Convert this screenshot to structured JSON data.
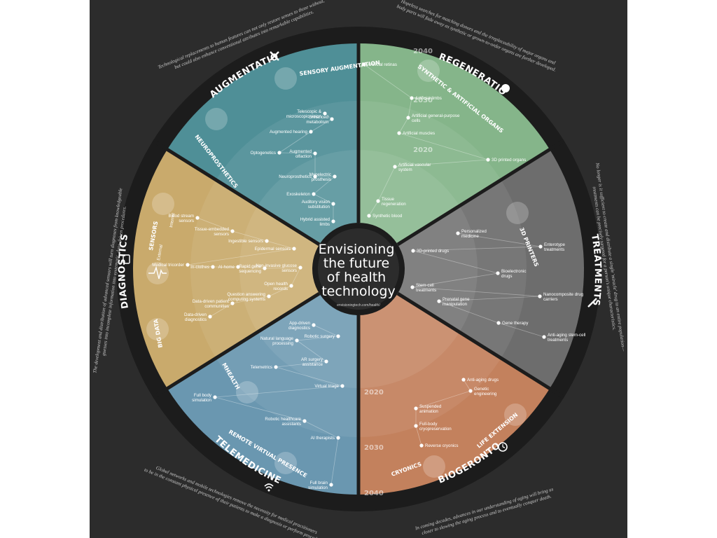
{
  "center": {
    "title_lines": [
      "Envisioning",
      "the future",
      "of health",
      "technology"
    ],
    "url": "envisioningtech.com/health/"
  },
  "years": {
    "y2020": "2020",
    "y2030": "2030",
    "y2040": "2040"
  },
  "colors": {
    "augmentation": "#4f8f97",
    "regeneration": "#85b58a",
    "treatments": "#6d6d6d",
    "biogerontology": "#c3815d",
    "telemedicine": "#6a97b0",
    "diagnostics": "#c9aa6c",
    "background": "#2c2c2c",
    "outer_ring": "#1c1c1c"
  },
  "sections": {
    "augmentation": {
      "title": "AUGMENTATION",
      "subcategories": [
        "SENSORY AUGMENTATION",
        "NEUROPROSTHETICS"
      ],
      "description": [
        "Technological replacements to human features can not only restore senses to those without,",
        "but could also enhance conventional attributes into remarkable capabilities."
      ],
      "items": [
        "Telescopic & microscopic vision",
        "Enhanced metabolism",
        "Augmented hearing",
        "Optogenetics",
        "Augmented olfaction",
        "Neuroprosthetics",
        "Myoelectric prosthesis",
        "Exoskeleton",
        "Auditory vision substitution",
        "Hybrid assisted limbs"
      ]
    },
    "regeneration": {
      "title": "REGENERATION",
      "subcategories": [
        "SYNTHETIC & ARTIFICIAL ORGANS"
      ],
      "description": [
        "Hopeless searches for matching donors and the irreplaceability of major organs and",
        "body parts will fade away as synthetic or grown-to-order organs are further developed."
      ],
      "items": [
        "Artificial retinas",
        "Artificial limbs",
        "Artificial general-purpose cells",
        "Artificial muscles",
        "3D printed organs",
        "Artificial vascular system",
        "Tissue regeneration",
        "Synthetic blood"
      ]
    },
    "treatments": {
      "title": "TREATMENTS",
      "subcategories": [
        "3D PRINTERS"
      ],
      "description": [
        "No longer is it sufficient to create and distribute a single 'miracle' drug to an entire population—",
        "treatments can be precisely targeted for a person's unique characteristics."
      ],
      "items": [
        "Personalized medicine",
        "Enterotype treatments",
        "3D-printed drugs",
        "Bioelectronic drugs",
        "Stem-cell treatments",
        "Nanocomposite drug carriers",
        "Prenatal gene manipulation",
        "Gene therapy",
        "Anti-aging stem-cell treatments"
      ]
    },
    "biogerontology": {
      "title": "BIOGERONTOLOGY",
      "subcategories": [
        "LIFE EXTENSION",
        "CRYONICS"
      ],
      "description": [
        "In coming decades, advances in our understanding of aging will bring us",
        "closer to slowing the aging process and to eventually conquer death."
      ],
      "items": [
        "Anti-aging drugs",
        "Genetic engineering",
        "Suspended animation",
        "Full-body cryopreservation",
        "Reverse cryonics"
      ]
    },
    "telemedicine": {
      "title": "TELEMEDICINE",
      "subcategories": [
        "MHEALTH",
        "REMOTE VIRTUAL PRESENCE"
      ],
      "description": [
        "Global networks and mobile technologies remove the necessity for medical practitioners",
        "to be in the constant physical presence of their patients to make a diagnosis or perform procedures."
      ],
      "items": [
        "App-driven diagnostics",
        "Robotic surgery",
        "Natural language processing",
        "AR surgery assistance",
        "Telemetrics",
        "Virtual triage",
        "Full body simulation",
        "Robotic healthcare assistants",
        "AI therapists",
        "Full brain simulation"
      ]
    },
    "diagnostics": {
      "title": "DIAGNOSTICS",
      "subcategories": [
        "SENSORS",
        "BIG DATA"
      ],
      "sensor_labels": [
        "External",
        "Internal"
      ],
      "description": [
        "The development and distribution of advanced sensors will turn diagnoses from knowledgeable",
        "guesses into incomplete information into systematic, data-driven procedures."
      ],
      "items": [
        "Blood stream sensors",
        "Tissue-embedded sensors",
        "Ingestible sensors",
        "Epidermal sensors",
        "Medical tricorder",
        "In-clothes",
        "AI-home",
        "Rapid gene sequencing",
        "Non-invasive glucose sensors",
        "Open health records",
        "Question answering computing systems",
        "Data-driven patient communities",
        "Data-driven diagnostics"
      ]
    }
  }
}
